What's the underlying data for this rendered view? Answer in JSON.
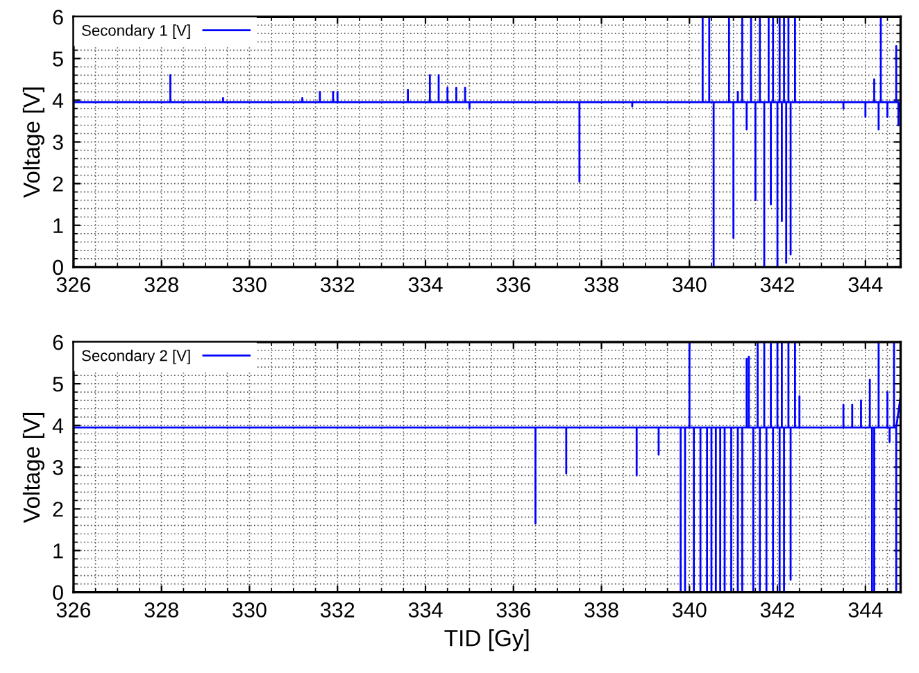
{
  "chart_data": [
    {
      "type": "line",
      "ylabel": "Voltage [V]",
      "xlim": [
        326,
        344.8
      ],
      "ylim": [
        0,
        6
      ],
      "xticks": [
        326,
        328,
        330,
        332,
        334,
        336,
        338,
        340,
        342,
        344
      ],
      "yticks": [
        0,
        1,
        2,
        3,
        4,
        5,
        6
      ],
      "grid": true,
      "legend": "top left",
      "tick_labels": true,
      "series": [
        {
          "name": "Secondary 1 [V]",
          "color": "#0000ff",
          "x": [
            326,
            328.2,
            328.2,
            328.2,
            329.4,
            329.4,
            329.4,
            331.2,
            331.2,
            331.2,
            331.6,
            331.6,
            331.6,
            331.9,
            331.9,
            331.9,
            332.0,
            332.0,
            332.0,
            333.6,
            333.6,
            333.6,
            334.1,
            334.1,
            334.1,
            334.3,
            334.3,
            334.3,
            334.5,
            334.5,
            334.5,
            334.7,
            334.7,
            334.7,
            334.9,
            334.9,
            334.9,
            335.0,
            335.0,
            335.0,
            337.5,
            337.5,
            337.5,
            338.7,
            338.7,
            338.7,
            340.3,
            340.3,
            340.3,
            340.45,
            340.45,
            340.45,
            340.55,
            340.55,
            340.55,
            340.9,
            340.9,
            340.9,
            341.0,
            341.0,
            341.0,
            341.1,
            341.1,
            341.1,
            341.2,
            341.2,
            341.2,
            341.3,
            341.3,
            341.3,
            341.4,
            341.4,
            341.4,
            341.5,
            341.5,
            341.5,
            341.6,
            341.6,
            341.6,
            341.7,
            341.7,
            341.7,
            341.8,
            341.8,
            341.8,
            341.85,
            341.85,
            341.85,
            341.9,
            341.9,
            341.9,
            342.0,
            342.0,
            342.0,
            342.05,
            342.05,
            342.05,
            342.1,
            342.1,
            342.1,
            342.15,
            342.15,
            342.15,
            342.2,
            342.2,
            342.2,
            342.25,
            342.25,
            342.25,
            342.3,
            342.3,
            342.3,
            342.4,
            342.4,
            342.4,
            343.5,
            343.5,
            343.5,
            344.0,
            344.0,
            344.0,
            344.2,
            344.2,
            344.2,
            344.3,
            344.3,
            344.3,
            344.35,
            344.35,
            344.35,
            344.5,
            344.5,
            344.5,
            344.7,
            344.7,
            344.7,
            344.75,
            344.75,
            344.75,
            344.8
          ],
          "values": [
            3.95,
            3.95,
            4.6,
            3.95,
            3.95,
            4.05,
            3.95,
            3.95,
            4.05,
            3.95,
            3.95,
            4.2,
            3.95,
            3.95,
            4.2,
            3.95,
            3.95,
            4.2,
            3.95,
            3.95,
            4.25,
            3.95,
            3.95,
            4.6,
            3.95,
            3.95,
            4.6,
            3.95,
            3.95,
            4.3,
            3.95,
            3.95,
            4.3,
            3.95,
            3.95,
            4.3,
            3.95,
            3.95,
            3.8,
            3.95,
            3.95,
            2.05,
            3.95,
            3.95,
            3.85,
            3.95,
            3.95,
            6,
            3.95,
            3.95,
            6,
            3.95,
            3.95,
            0,
            3.95,
            3.95,
            6,
            3.95,
            3.95,
            0.7,
            3.95,
            3.95,
            4.2,
            3.95,
            3.95,
            6,
            3.95,
            3.95,
            3.3,
            3.95,
            3.95,
            6,
            3.95,
            3.95,
            1.6,
            3.95,
            3.95,
            6,
            3.95,
            3.95,
            0,
            3.95,
            3.95,
            6,
            3.95,
            3.95,
            1.5,
            3.95,
            3.95,
            6,
            3.95,
            3.95,
            0,
            3.95,
            3.95,
            6,
            3.95,
            3.95,
            1.1,
            3.95,
            3.95,
            6,
            3.95,
            3.95,
            0.1,
            3.95,
            3.95,
            6,
            3.95,
            3.95,
            0.3,
            3.95,
            3.95,
            6,
            3.95,
            3.95,
            3.8,
            3.95,
            3.95,
            3.6,
            3.95,
            3.95,
            4.5,
            3.95,
            3.95,
            3.3,
            3.95,
            3.95,
            6,
            3.95,
            3.95,
            3.6,
            3.95,
            3.95,
            5.3,
            3.95,
            3.95,
            3.4,
            3.95,
            3.7
          ]
        }
      ]
    },
    {
      "type": "line",
      "xlabel": "TID [Gy]",
      "ylabel": "Voltage [V]",
      "xlim": [
        326,
        344.8
      ],
      "ylim": [
        0,
        6
      ],
      "xticks": [
        326,
        328,
        330,
        332,
        334,
        336,
        338,
        340,
        342,
        344
      ],
      "yticks": [
        0,
        1,
        2,
        3,
        4,
        5,
        6
      ],
      "grid": true,
      "legend": "top left",
      "series": [
        {
          "name": "Secondary 2 [V]",
          "color": "#0000ff",
          "x": [
            326,
            336.5,
            336.5,
            336.5,
            337.2,
            337.2,
            337.2,
            338.8,
            338.8,
            338.8,
            339.3,
            339.3,
            339.3,
            339.8,
            339.8,
            339.8,
            339.9,
            339.9,
            339.9,
            340.0,
            340.0,
            340.0,
            340.1,
            340.1,
            340.1,
            340.25,
            340.25,
            340.25,
            340.4,
            340.4,
            340.4,
            340.5,
            340.5,
            340.5,
            340.6,
            340.6,
            340.6,
            340.7,
            340.7,
            340.7,
            340.8,
            340.8,
            340.8,
            340.95,
            340.95,
            340.95,
            341.1,
            341.1,
            341.1,
            341.2,
            341.2,
            341.2,
            341.3,
            341.3,
            341.3,
            341.35,
            341.35,
            341.35,
            341.45,
            341.45,
            341.45,
            341.55,
            341.55,
            341.55,
            341.6,
            341.6,
            341.6,
            341.7,
            341.7,
            341.7,
            341.75,
            341.75,
            341.75,
            341.85,
            341.85,
            341.85,
            341.9,
            341.9,
            341.9,
            342.0,
            342.0,
            342.0,
            342.05,
            342.05,
            342.05,
            342.1,
            342.1,
            342.1,
            342.15,
            342.15,
            342.15,
            342.25,
            342.25,
            342.25,
            342.3,
            342.3,
            342.3,
            342.4,
            342.4,
            342.4,
            342.5,
            342.5,
            342.5,
            343.5,
            343.5,
            343.5,
            343.7,
            343.7,
            343.7,
            343.9,
            343.9,
            343.9,
            344.1,
            344.1,
            344.1,
            344.15,
            344.15,
            344.15,
            344.2,
            344.2,
            344.2,
            344.3,
            344.3,
            344.3,
            344.5,
            344.5,
            344.5,
            344.55,
            344.55,
            344.55,
            344.65,
            344.65,
            344.65,
            344.7,
            344.7,
            344.7,
            344.8
          ],
          "values": [
            3.95,
            3.95,
            1.65,
            3.95,
            3.95,
            2.85,
            3.95,
            3.95,
            2.8,
            3.95,
            3.95,
            3.3,
            3.95,
            3.95,
            0,
            3.95,
            3.95,
            0,
            3.95,
            3.95,
            6,
            3.95,
            3.95,
            0,
            3.95,
            3.95,
            0,
            3.95,
            3.95,
            0,
            3.95,
            3.95,
            0,
            3.95,
            3.95,
            0,
            3.95,
            3.95,
            0,
            3.95,
            3.95,
            0,
            3.95,
            3.95,
            0,
            3.95,
            3.95,
            0,
            3.95,
            3.95,
            0,
            3.95,
            3.95,
            5.6,
            3.95,
            3.95,
            5.65,
            3.95,
            3.95,
            0,
            3.95,
            3.95,
            6,
            3.95,
            3.95,
            0,
            3.95,
            3.95,
            6,
            3.95,
            3.95,
            0,
            3.95,
            3.95,
            6,
            3.95,
            3.95,
            0,
            3.95,
            3.95,
            6,
            3.95,
            3.95,
            0,
            3.95,
            3.95,
            6,
            3.95,
            3.95,
            0,
            3.95,
            3.95,
            6,
            3.95,
            3.95,
            0.3,
            3.95,
            3.95,
            6,
            3.95,
            3.95,
            4.7,
            3.95,
            3.95,
            4.5,
            3.95,
            3.95,
            4.5,
            3.95,
            3.95,
            4.6,
            3.95,
            3.95,
            5.1,
            3.95,
            3.95,
            0,
            3.95,
            3.95,
            0,
            3.95,
            3.95,
            6,
            3.95,
            3.95,
            4.8,
            3.95,
            3.95,
            3.6,
            3.95,
            3.95,
            6,
            3.95,
            3.95,
            0,
            3.95,
            4.7
          ]
        }
      ]
    }
  ]
}
